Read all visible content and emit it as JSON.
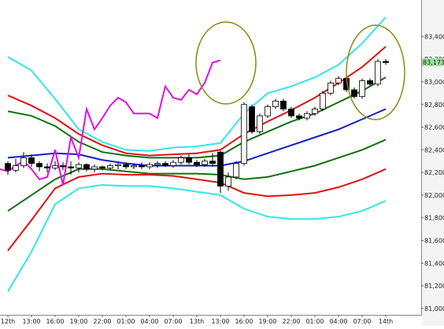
{
  "chart_data": {
    "type": "candlestick",
    "xlim": [
      -1,
      52.5
    ],
    "xticks": [
      {
        "value": 0,
        "label": "12th"
      },
      {
        "value": 3,
        "label": "13:00"
      },
      {
        "value": 6,
        "label": "16:00"
      },
      {
        "value": 9,
        "label": "19:00"
      },
      {
        "value": 12,
        "label": "22:00"
      },
      {
        "value": 15,
        "label": "01:00"
      },
      {
        "value": 18,
        "label": "04:00"
      },
      {
        "value": 21,
        "label": "07:00"
      },
      {
        "value": 24,
        "label": "13th"
      },
      {
        "value": 27,
        "label": "13:00"
      },
      {
        "value": 30,
        "label": "16:00"
      },
      {
        "value": 33,
        "label": "19:00"
      },
      {
        "value": 36,
        "label": "22:00"
      },
      {
        "value": 39,
        "label": "01:00"
      },
      {
        "value": 42,
        "label": "04:00"
      },
      {
        "value": 45,
        "label": "07:00"
      },
      {
        "value": 48,
        "label": "14th"
      }
    ],
    "ylim": [
      80944,
      83722
    ],
    "yticks": [
      {
        "value": 81000,
        "label": "81,000"
      },
      {
        "value": 81200,
        "label": "81,200"
      },
      {
        "value": 81400,
        "label": "81,400"
      },
      {
        "value": 81600,
        "label": "81,600"
      },
      {
        "value": 81800,
        "label": "81,800"
      },
      {
        "value": 82000,
        "label": "82,000"
      },
      {
        "value": 82200,
        "label": "82,200"
      },
      {
        "value": 82400,
        "label": "82,400"
      },
      {
        "value": 82600,
        "label": "82,600"
      },
      {
        "value": 82800,
        "label": "82,800"
      },
      {
        "value": 83000,
        "label": "83,000"
      },
      {
        "value": 83200,
        "label": "83,200"
      },
      {
        "value": 83400,
        "label": "83,400"
      }
    ],
    "last_price": {
      "value": 83173,
      "label": "83,173"
    },
    "series": [
      {
        "color": "#33e6e6",
        "x": [
          0,
          3,
          6,
          9,
          12,
          15,
          18,
          21,
          24,
          27,
          30,
          33,
          36,
          39,
          42,
          45,
          48
        ],
        "values": [
          83220,
          83100,
          82850,
          82580,
          82470,
          82400,
          82390,
          82420,
          82430,
          82460,
          82720,
          82900,
          82960,
          83040,
          83150,
          83340,
          83570
        ]
      },
      {
        "color": "#e01010",
        "x": [
          0,
          3,
          6,
          9,
          12,
          15,
          18,
          21,
          24,
          27,
          30,
          33,
          36,
          39,
          42,
          45,
          48
        ],
        "values": [
          82880,
          82790,
          82680,
          82540,
          82440,
          82370,
          82350,
          82360,
          82370,
          82400,
          82540,
          82650,
          82750,
          82860,
          82990,
          83130,
          83310
        ]
      },
      {
        "color": "#107010",
        "x": [
          0,
          3,
          6,
          9,
          12,
          15,
          18,
          21,
          24,
          27,
          30,
          33,
          36,
          39,
          42,
          45,
          48
        ],
        "values": [
          82740,
          82700,
          82610,
          82470,
          82380,
          82350,
          82330,
          82330,
          82330,
          82350,
          82470,
          82560,
          82650,
          82720,
          82820,
          82920,
          83040
        ]
      },
      {
        "color": "#1020c0",
        "x": [
          0,
          3,
          6,
          9,
          12,
          15,
          18,
          21,
          24,
          27,
          30,
          33,
          36,
          39,
          42,
          45,
          48
        ],
        "values": [
          82330,
          82350,
          82370,
          82360,
          82310,
          82280,
          82260,
          82260,
          82260,
          82260,
          82300,
          82370,
          82440,
          82510,
          82580,
          82670,
          82760
        ]
      },
      {
        "color": "#107010",
        "x": [
          0,
          3,
          6,
          9,
          12,
          15,
          18,
          21,
          24,
          27,
          30,
          33,
          36,
          39,
          42,
          45,
          48
        ],
        "values": [
          81860,
          82000,
          82140,
          82230,
          82230,
          82210,
          82190,
          82190,
          82190,
          82180,
          82140,
          82160,
          82210,
          82260,
          82330,
          82400,
          82490
        ]
      },
      {
        "color": "#e01010",
        "x": [
          0,
          3,
          6,
          9,
          12,
          15,
          18,
          21,
          24,
          27,
          30,
          33,
          36,
          39,
          42,
          45,
          48
        ],
        "values": [
          81510,
          81780,
          82060,
          82160,
          82190,
          82180,
          82180,
          82170,
          82140,
          82110,
          82020,
          81990,
          82000,
          82020,
          82070,
          82140,
          82230
        ]
      },
      {
        "color": "#33e6e6",
        "x": [
          0,
          3,
          6,
          9,
          12,
          15,
          18,
          21,
          24,
          27,
          30,
          33,
          36,
          39,
          42,
          45,
          48
        ],
        "values": [
          81150,
          81500,
          81920,
          82060,
          82090,
          82080,
          82080,
          82060,
          82030,
          82000,
          81880,
          81810,
          81790,
          81790,
          81810,
          81860,
          81950
        ]
      },
      {
        "color": "#e010e0",
        "x": [
          -1,
          0,
          1,
          2,
          3,
          4,
          5,
          6,
          7,
          8,
          9,
          10,
          11,
          12,
          13,
          14,
          15,
          16,
          17,
          18,
          19,
          20,
          21,
          22,
          23,
          24,
          25,
          26,
          27
        ],
        "values": [
          82230,
          82210,
          82260,
          82300,
          82230,
          82140,
          82160,
          82400,
          82090,
          82510,
          82330,
          82760,
          82580,
          82680,
          82790,
          82860,
          82820,
          82720,
          82720,
          82720,
          82680,
          82960,
          82860,
          82840,
          82930,
          82890,
          82990,
          83170,
          83190
        ]
      }
    ],
    "candles": {
      "x": [
        0,
        1,
        2,
        3,
        4,
        5,
        6,
        7,
        8,
        9,
        10,
        11,
        12,
        13,
        14,
        15,
        16,
        17,
        18,
        19,
        20,
        21,
        22,
        23,
        24,
        25,
        26,
        27,
        28,
        29,
        30,
        31,
        32,
        33,
        34,
        35,
        36,
        37,
        38,
        39,
        40,
        41,
        42,
        43,
        44,
        45,
        46,
        47,
        48
      ],
      "open": [
        82280,
        82220,
        82260,
        82330,
        82280,
        82250,
        82240,
        82260,
        82250,
        82240,
        82270,
        82230,
        82250,
        82240,
        82260,
        82270,
        82250,
        82260,
        82250,
        82270,
        82280,
        82260,
        82290,
        82330,
        82290,
        82270,
        82300,
        82380,
        82080,
        82160,
        82280,
        82780,
        82560,
        82700,
        82780,
        82830,
        82760,
        82700,
        82680,
        82720,
        82760,
        82900,
        82990,
        83030,
        82930,
        82870,
        83010,
        82980,
        83180
      ],
      "high": [
        82300,
        82320,
        82380,
        82360,
        82300,
        82280,
        82300,
        82290,
        82300,
        82290,
        82280,
        82270,
        82260,
        82280,
        82290,
        82290,
        82280,
        82290,
        82290,
        82300,
        82300,
        82310,
        82350,
        82360,
        82310,
        82320,
        82370,
        82390,
        82200,
        82300,
        82820,
        82800,
        82720,
        82800,
        82850,
        82850,
        82780,
        82720,
        82740,
        82780,
        82920,
        83010,
        83050,
        83050,
        82950,
        83030,
        83030,
        83200,
        83200
      ],
      "low": [
        82180,
        82200,
        82240,
        82250,
        82210,
        82200,
        82220,
        82220,
        82180,
        82200,
        82210,
        82200,
        82220,
        82220,
        82230,
        82230,
        82230,
        82230,
        82230,
        82240,
        82250,
        82240,
        82270,
        82270,
        82250,
        82250,
        82250,
        82020,
        82040,
        82140,
        82260,
        82540,
        82540,
        82680,
        82760,
        82740,
        82680,
        82660,
        82660,
        82700,
        82740,
        82880,
        82970,
        82910,
        82850,
        82850,
        82960,
        82960,
        83150
      ],
      "close": [
        82220,
        82260,
        82330,
        82280,
        82250,
        82240,
        82260,
        82250,
        82240,
        82270,
        82230,
        82250,
        82240,
        82260,
        82270,
        82250,
        82260,
        82250,
        82270,
        82280,
        82260,
        82290,
        82330,
        82290,
        82270,
        82300,
        82280,
        82080,
        82160,
        82280,
        82800,
        82560,
        82700,
        82780,
        82830,
        82760,
        82700,
        82680,
        82720,
        82760,
        82900,
        82990,
        83030,
        82930,
        82870,
        83010,
        82980,
        83180,
        83170
      ]
    }
  }
}
